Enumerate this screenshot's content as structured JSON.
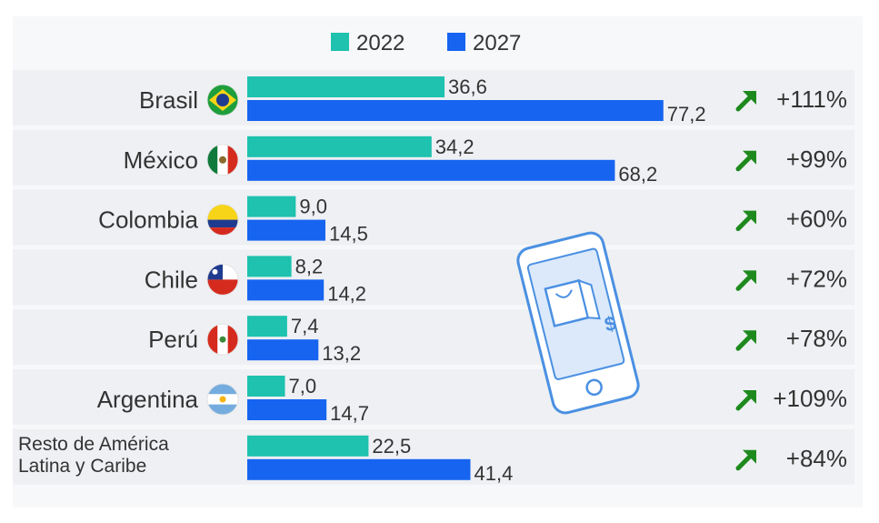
{
  "legend": [
    {
      "label": "2022",
      "color": "#1ec2ae"
    },
    {
      "label": "2027",
      "color": "#1664f0"
    }
  ],
  "colors": {
    "row_bg": "#eef0f3",
    "canvas_bg": "#f7f8fa",
    "arrow": "#1e8a1e",
    "text": "#333333",
    "phone_outline": "#4a90e2",
    "phone_fill": "#dbe9fb"
  },
  "chart_data": {
    "type": "bar",
    "orientation": "horizontal",
    "categories": [
      "Brasil",
      "México",
      "Colombia",
      "Chile",
      "Perú",
      "Argentina",
      "Resto de América Latina y Caribe"
    ],
    "category_lines": [
      [
        "Brasil"
      ],
      [
        "México"
      ],
      [
        "Colombia"
      ],
      [
        "Chile"
      ],
      [
        "Perú"
      ],
      [
        "Argentina"
      ],
      [
        "Resto de América",
        "Latina y Caribe"
      ]
    ],
    "flag_icons": [
      "brazil-flag-icon",
      "mexico-flag-icon",
      "colombia-flag-icon",
      "chile-flag-icon",
      "peru-flag-icon",
      "argentina-flag-icon",
      ""
    ],
    "series": [
      {
        "name": "2022",
        "values": [
          36.6,
          34.2,
          9.0,
          8.2,
          7.4,
          7.0,
          22.5
        ],
        "labels": [
          "36,6",
          "34,2",
          "9,0",
          "8,2",
          "7,4",
          "7,0",
          "22,5"
        ]
      },
      {
        "name": "2027",
        "values": [
          77.2,
          68.2,
          14.5,
          14.2,
          13.2,
          14.7,
          41.4
        ],
        "labels": [
          "77,2",
          "68,2",
          "14,5",
          "14,2",
          "13,2",
          "14,7",
          "41,4"
        ]
      }
    ],
    "growth": [
      "+111%",
      "+99%",
      "+60%",
      "+72%",
      "+78%",
      "+109%",
      "+84%"
    ],
    "growth_icon": "up-right-arrow-icon",
    "decoration_icon": "smartphone-shopping-bag-icon",
    "xlim": [
      0,
      80
    ]
  }
}
